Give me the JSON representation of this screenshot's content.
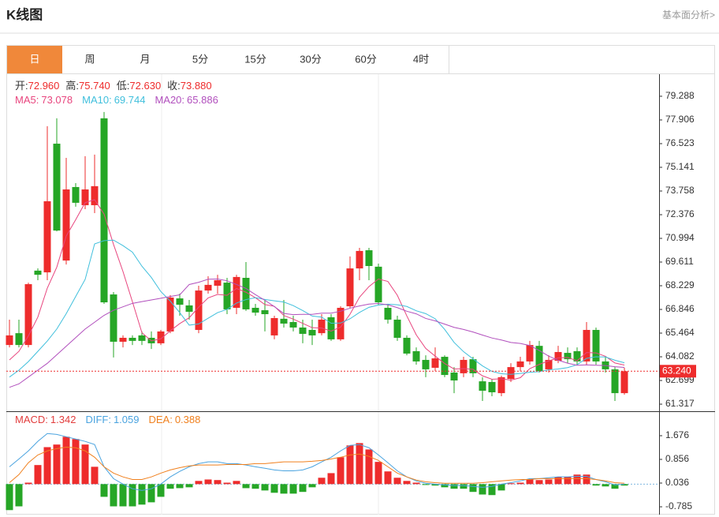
{
  "header": {
    "title": "K线图",
    "link": "基本面分析>"
  },
  "tabs": [
    "日",
    "周",
    "月",
    "5分",
    "15分",
    "30分",
    "60分",
    "4时"
  ],
  "chart_data": [
    {
      "type": "candlestick",
      "quote": [
        {
          "label": "开:",
          "value": "72.960"
        },
        {
          "label": "高:",
          "value": "75.740"
        },
        {
          "label": "低:",
          "value": "72.630"
        },
        {
          "label": "收:",
          "value": "73.880"
        }
      ],
      "up_color": "#ee2c2c",
      "down_color": "#26a626",
      "open": [
        64.77,
        65.46,
        64.77,
        69.11,
        69.01,
        76.52,
        69.7,
        73.99,
        72.93,
        72.93,
        78.0,
        67.72,
        64.96,
        65.19,
        65.33,
        65.19,
        64.87,
        65.56,
        67.49,
        67.08,
        65.65,
        67.95,
        68.23,
        68.41,
        66.94,
        68.69,
        66.94,
        66.8,
        65.33,
        66.3,
        66.11,
        65.79,
        65.65,
        65.46,
        66.39,
        65.1,
        67.03,
        69.24,
        70.3,
        69.34,
        66.94,
        66.25,
        65.19,
        64.41,
        63.9,
        63.44,
        64.08,
        63.16,
        63.12,
        63.94,
        62.65,
        62.61,
        61.96,
        62.79,
        63.48,
        63.81,
        64.72,
        63.35,
        63.85,
        64.31,
        64.41,
        63.81,
        65.65,
        63.81,
        63.35,
        61.96
      ],
      "high": [
        66.25,
        66.25,
        68.41,
        69.24,
        77.54,
        78.0,
        75.69,
        74.22,
        75.79,
        75.88,
        78.37,
        67.86,
        65.33,
        65.33,
        65.56,
        65.56,
        65.65,
        67.68,
        67.77,
        67.4,
        68.23,
        68.78,
        68.87,
        68.69,
        68.87,
        69.61,
        67.17,
        67.4,
        66.48,
        67.4,
        66.48,
        66.25,
        66.25,
        66.57,
        66.57,
        67.03,
        69.94,
        70.44,
        70.44,
        69.52,
        67.17,
        66.48,
        65.33,
        64.63,
        64.17,
        64.63,
        64.17,
        63.48,
        64.08,
        64.08,
        62.89,
        62.79,
        62.98,
        63.71,
        64.08,
        65.01,
        65.01,
        64.17,
        64.72,
        64.63,
        64.63,
        66.11,
        65.79,
        64.08,
        63.48,
        63.44
      ],
      "low": [
        64.63,
        64.63,
        64.63,
        68.55,
        68.55,
        71.4,
        69.47,
        72.84,
        72.7,
        72.47,
        67.17,
        64.04,
        64.63,
        64.77,
        64.77,
        64.54,
        64.77,
        65.46,
        66.48,
        66.25,
        65.46,
        67.77,
        67.77,
        66.57,
        66.57,
        66.76,
        66.48,
        65.56,
        65.1,
        65.79,
        65.56,
        64.87,
        64.77,
        65.33,
        65.01,
        65.01,
        66.94,
        68.55,
        68.55,
        67.12,
        66.02,
        65.01,
        64.17,
        63.62,
        62.89,
        63.25,
        62.89,
        61.96,
        62.89,
        62.89,
        61.5,
        61.78,
        61.78,
        62.61,
        63.25,
        63.62,
        63.16,
        63.16,
        63.71,
        63.71,
        63.62,
        63.62,
        63.62,
        63.16,
        61.5,
        61.87
      ],
      "close": [
        65.33,
        64.77,
        68.32,
        68.87,
        73.16,
        71.45,
        73.85,
        73.07,
        73.85,
        74.04,
        67.26,
        64.96,
        65.19,
        65.01,
        65.01,
        64.87,
        65.56,
        67.54,
        67.12,
        66.71,
        67.95,
        68.28,
        68.55,
        66.85,
        68.74,
        66.85,
        66.66,
        66.57,
        66.34,
        66.02,
        65.79,
        65.42,
        65.33,
        66.25,
        65.1,
        66.94,
        69.24,
        70.26,
        69.38,
        67.26,
        66.25,
        65.19,
        64.27,
        63.81,
        63.35,
        63.99,
        63.02,
        62.7,
        63.9,
        63.12,
        62.1,
        62.01,
        62.89,
        63.48,
        63.81,
        64.77,
        63.25,
        63.9,
        64.36,
        63.94,
        63.81,
        65.65,
        63.81,
        63.35,
        61.96,
        63.24
      ],
      "series": [
        {
          "name": "MA5:",
          "legend_value": "73.078",
          "color": "#e8457e",
          "kind": "line",
          "values": [
            63.9,
            64.4,
            65.3,
            66.4,
            68.09,
            69.31,
            71.13,
            72.08,
            73.08,
            73.25,
            72.41,
            70.64,
            69.06,
            67.29,
            65.49,
            65.01,
            65.13,
            65.6,
            66.02,
            66.36,
            66.98,
            67.52,
            67.72,
            67.67,
            68.07,
            67.85,
            67.53,
            67.13,
            67.03,
            66.49,
            66.28,
            66.03,
            65.78,
            65.76,
            65.58,
            65.81,
            66.57,
            67.56,
            68.18,
            68.62,
            68.48,
            67.67,
            66.47,
            65.36,
            64.57,
            64.12,
            63.69,
            63.37,
            63.39,
            63.35,
            62.97,
            62.77,
            62.8,
            62.72,
            62.86,
            63.39,
            63.64,
            63.84,
            64.02,
            64.04,
            63.85,
            64.33,
            64.31,
            64.11,
            63.72,
            63.6
          ]
        },
        {
          "name": "MA10:",
          "legend_value": "69.744",
          "color": "#3fbfdc",
          "kind": "line",
          "values": [
            62.9,
            63.3,
            63.8,
            64.4,
            65.0,
            65.7,
            66.6,
            67.6,
            68.6,
            70.67,
            70.86,
            70.89,
            70.57,
            70.19,
            69.37,
            68.71,
            67.89,
            67.33,
            66.66,
            65.93,
            66.0,
            66.33,
            66.66,
            66.85,
            67.22,
            67.42,
            67.53,
            67.43,
            67.35,
            67.28,
            67.07,
            66.78,
            66.46,
            66.4,
            66.04,
            66.05,
            66.3,
            66.67,
            66.97,
            67.1,
            67.15,
            67.12,
            67.02,
            66.77,
            66.6,
            66.3,
            65.68,
            64.92,
            64.38,
            63.96,
            63.55,
            63.23,
            63.09,
            63.06,
            63.11,
            63.18,
            63.21,
            63.32,
            63.37,
            63.45,
            63.62,
            63.99,
            64.08,
            64.07,
            63.88,
            63.73
          ]
        },
        {
          "name": "MA20:",
          "legend_value": "65.886",
          "color": "#b14fbd",
          "kind": "line",
          "values": [
            62.3,
            62.5,
            62.9,
            63.3,
            63.7,
            64.2,
            64.7,
            65.2,
            65.7,
            66.1,
            66.5,
            66.8,
            67.0,
            67.2,
            67.3,
            67.4,
            67.5,
            67.6,
            67.7,
            68.3,
            68.43,
            68.61,
            68.62,
            68.52,
            68.3,
            68.07,
            67.71,
            67.38,
            67.01,
            66.61,
            66.54,
            66.56,
            66.56,
            66.63,
            66.63,
            66.74,
            66.92,
            67.05,
            67.16,
            67.19,
            67.11,
            66.95,
            66.74,
            66.59,
            66.32,
            66.18,
            65.99,
            65.8,
            65.68,
            65.53,
            65.35,
            65.18,
            65.06,
            64.92,
            64.86,
            64.74,
            64.45,
            64.12,
            63.88,
            63.71,
            63.59,
            63.61,
            63.59,
            63.57,
            63.5,
            63.46
          ]
        }
      ],
      "last_price": {
        "value": 63.24,
        "label": "63.240"
      },
      "ylim": [
        60.95,
        80.53
      ],
      "yticks": [
        79.288,
        77.906,
        76.523,
        75.141,
        73.758,
        72.376,
        70.994,
        69.611,
        68.229,
        66.846,
        65.464,
        64.082,
        62.699,
        61.317
      ]
    },
    {
      "type": "macd",
      "up_color": "#ee2c2c",
      "down_color": "#26a626",
      "series": [
        {
          "name": "MACD:",
          "legend_value": "1.342",
          "color": "#e23d3d",
          "kind": "bar",
          "values": [
            -0.9,
            -0.77,
            0.05,
            0.66,
            1.28,
            1.37,
            1.64,
            1.56,
            1.37,
            0.6,
            -0.44,
            -0.77,
            -0.77,
            -0.77,
            -0.71,
            -0.63,
            -0.44,
            -0.16,
            -0.14,
            -0.11,
            0.11,
            0.16,
            0.14,
            0.05,
            0.11,
            -0.14,
            -0.16,
            -0.22,
            -0.3,
            -0.33,
            -0.33,
            -0.27,
            -0.11,
            0.22,
            0.38,
            0.93,
            1.34,
            1.42,
            1.2,
            0.77,
            0.44,
            0.22,
            0.11,
            0.05,
            -0.03,
            -0.05,
            -0.11,
            -0.16,
            -0.16,
            -0.27,
            -0.36,
            -0.38,
            -0.22,
            0.03,
            0.05,
            0.16,
            0.14,
            0.16,
            0.25,
            0.25,
            0.33,
            0.33,
            -0.05,
            -0.08,
            -0.16,
            -0.05
          ]
        },
        {
          "name": "DIFF:",
          "legend_value": "1.059",
          "color": "#4aa3df",
          "kind": "line",
          "values": [
            0.6,
            0.87,
            1.15,
            1.48,
            1.75,
            1.72,
            1.64,
            1.56,
            1.48,
            1.37,
            0.6,
            0.19,
            0.0,
            -0.16,
            -0.22,
            -0.16,
            0.0,
            0.25,
            0.44,
            0.6,
            0.71,
            0.77,
            0.77,
            0.71,
            0.71,
            0.66,
            0.6,
            0.55,
            0.49,
            0.46,
            0.46,
            0.49,
            0.6,
            0.77,
            0.93,
            1.15,
            1.34,
            1.37,
            1.26,
            1.01,
            0.74,
            0.46,
            0.25,
            0.11,
            0.03,
            0.0,
            -0.03,
            -0.05,
            -0.05,
            -0.08,
            -0.11,
            -0.08,
            0.0,
            0.05,
            0.11,
            0.19,
            0.19,
            0.22,
            0.25,
            0.25,
            0.27,
            0.27,
            0.16,
            0.08,
            -0.03,
            0.0
          ]
        },
        {
          "name": "DEA:",
          "legend_value": "0.388",
          "color": "#f0801e",
          "kind": "line",
          "values": [
            0.05,
            0.33,
            0.74,
            1.01,
            1.15,
            1.23,
            1.28,
            1.26,
            1.15,
            0.93,
            0.6,
            0.38,
            0.25,
            0.16,
            0.16,
            0.25,
            0.38,
            0.49,
            0.57,
            0.63,
            0.66,
            0.66,
            0.66,
            0.68,
            0.68,
            0.68,
            0.71,
            0.71,
            0.74,
            0.77,
            0.77,
            0.77,
            0.79,
            0.82,
            0.87,
            0.93,
            1.01,
            1.04,
            0.96,
            0.82,
            0.6,
            0.38,
            0.25,
            0.14,
            0.08,
            0.05,
            0.03,
            0.03,
            0.03,
            0.03,
            0.05,
            0.08,
            0.11,
            0.14,
            0.16,
            0.16,
            0.19,
            0.19,
            0.19,
            0.19,
            0.19,
            0.19,
            0.16,
            0.11,
            0.05,
            0.03
          ]
        }
      ],
      "ylim": [
        -1.057,
        2.496
      ],
      "yticks": [
        1.676,
        0.856,
        0.036,
        -0.785
      ]
    }
  ]
}
